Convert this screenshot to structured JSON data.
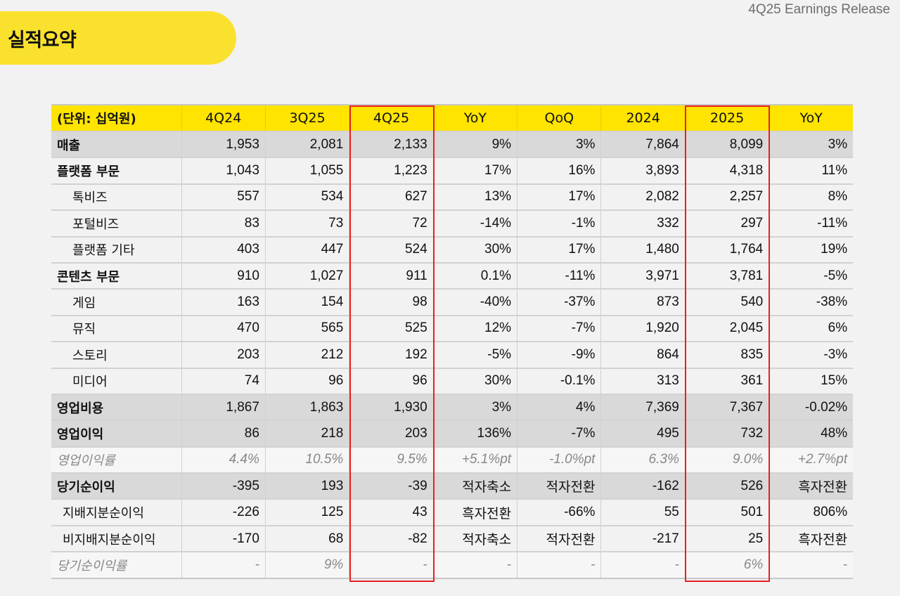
{
  "header": {
    "title": "실적요약",
    "release_label": "4Q25 Earnings Release",
    "accent_color": "#fae12d",
    "table_header_color": "#ffe400",
    "highlight_border_color": "#e8201f"
  },
  "table": {
    "unit_label": "(단위: 십억원)",
    "columns": [
      "4Q24",
      "3Q25",
      "4Q25",
      "YoY",
      "QoQ",
      "2024",
      "2025",
      "YoY"
    ],
    "highlighted_columns": [
      "4Q25",
      "2025"
    ],
    "rows": [
      {
        "label": "매출",
        "style": "highlight",
        "values": [
          "1,953",
          "2,081",
          "2,133",
          "9%",
          "3%",
          "7,864",
          "8,099",
          "3%"
        ]
      },
      {
        "label": "플랫폼 부문",
        "style": "section",
        "values": [
          "1,043",
          "1,055",
          "1,223",
          "17%",
          "16%",
          "3,893",
          "4,318",
          "11%"
        ]
      },
      {
        "label": "톡비즈",
        "style": "sub",
        "values": [
          "557",
          "534",
          "627",
          "13%",
          "17%",
          "2,082",
          "2,257",
          "8%"
        ]
      },
      {
        "label": "포털비즈",
        "style": "sub",
        "values": [
          "83",
          "73",
          "72",
          "-14%",
          "-1%",
          "332",
          "297",
          "-11%"
        ]
      },
      {
        "label": "플랫폼 기타",
        "style": "sub",
        "values": [
          "403",
          "447",
          "524",
          "30%",
          "17%",
          "1,480",
          "1,764",
          "19%"
        ]
      },
      {
        "label": "콘텐츠 부문",
        "style": "section",
        "values": [
          "910",
          "1,027",
          "911",
          "0.1%",
          "-11%",
          "3,971",
          "3,781",
          "-5%"
        ]
      },
      {
        "label": "게임",
        "style": "sub",
        "values": [
          "163",
          "154",
          "98",
          "-40%",
          "-37%",
          "873",
          "540",
          "-38%"
        ]
      },
      {
        "label": "뮤직",
        "style": "sub",
        "values": [
          "470",
          "565",
          "525",
          "12%",
          "-7%",
          "1,920",
          "2,045",
          "6%"
        ]
      },
      {
        "label": "스토리",
        "style": "sub",
        "values": [
          "203",
          "212",
          "192",
          "-5%",
          "-9%",
          "864",
          "835",
          "-3%"
        ]
      },
      {
        "label": "미디어",
        "style": "sub",
        "values": [
          "74",
          "96",
          "96",
          "30%",
          "-0.1%",
          "313",
          "361",
          "15%"
        ]
      },
      {
        "label": "영업비용",
        "style": "highlight",
        "values": [
          "1,867",
          "1,863",
          "1,930",
          "3%",
          "4%",
          "7,369",
          "7,367",
          "-0.02%"
        ]
      },
      {
        "label": "영업이익",
        "style": "highlight",
        "values": [
          "86",
          "218",
          "203",
          "136%",
          "-7%",
          "495",
          "732",
          "48%"
        ]
      },
      {
        "label": "영업이익률",
        "style": "ratio",
        "values": [
          "4.4%",
          "10.5%",
          "9.5%",
          "+5.1%pt",
          "-1.0%pt",
          "6.3%",
          "9.0%",
          "+2.7%pt"
        ]
      },
      {
        "label": "당기순이익",
        "style": "highlight",
        "values": [
          "-395",
          "193",
          "-39",
          "적자축소",
          "적자전환",
          "-162",
          "526",
          "흑자전환"
        ]
      },
      {
        "label": "지배지분순이익",
        "style": "sub2",
        "values": [
          "-226",
          "125",
          "43",
          "흑자전환",
          "-66%",
          "55",
          "501",
          "806%"
        ]
      },
      {
        "label": "비지배지분순이익",
        "style": "sub2",
        "values": [
          "-170",
          "68",
          "-82",
          "적자축소",
          "적자전환",
          "-217",
          "25",
          "흑자전환"
        ]
      },
      {
        "label": "당기순이익률",
        "style": "ratio",
        "values": [
          "-",
          "9%",
          "-",
          "-",
          "-",
          "-",
          "6%",
          "-"
        ]
      }
    ]
  }
}
